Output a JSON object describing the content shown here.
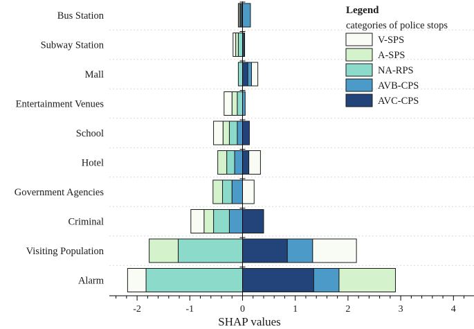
{
  "chart_data": {
    "type": "bar",
    "orientation": "horizontal",
    "stacking": "diverging",
    "xlabel": "SHAP values",
    "xlim": [
      -2.6,
      4.4
    ],
    "xticks": [
      -2,
      -1,
      0,
      1,
      2,
      3,
      4
    ],
    "xtick_labels": [
      "-2",
      "-1",
      "0",
      "1",
      "2",
      "3",
      "4"
    ],
    "categories": [
      "Bus Station",
      "Subway Station",
      "Mall",
      "Entertainment Venues",
      "School",
      "Hotel",
      "Government Agencies",
      "Criminal",
      "Visiting Population",
      "Alarm"
    ],
    "legend": {
      "title": "Legend",
      "subtitle": "categories of police stops",
      "position": "top-right",
      "entries": [
        "V-SPS",
        "A-SPS",
        "NA-RPS",
        "AVB-CPS",
        "AVC-CPS"
      ]
    },
    "series_colors": {
      "V-SPS": "#f8fcf5",
      "A-SPS": "#d4f3cc",
      "NA-RPS": "#8cdac9",
      "AVB-CPS": "#4b9ac8",
      "AVC-CPS": "#22447a"
    },
    "bars": [
      {
        "category": "Bus Station",
        "positive": [
          [
            "AVB-CPS",
            0.15
          ]
        ],
        "negative": [
          [
            "AVC-CPS",
            0.02
          ],
          [
            "NA-RPS",
            0.02
          ],
          [
            "A-SPS",
            0.02
          ],
          [
            "V-SPS",
            0.02
          ]
        ]
      },
      {
        "category": "Subway Station",
        "positive": [
          [
            "AVB-CPS",
            0.02
          ],
          [
            "AVC-CPS",
            0.02
          ]
        ],
        "negative": [
          [
            "NA-RPS",
            0.08
          ],
          [
            "A-SPS",
            0.05
          ],
          [
            "V-SPS",
            0.05
          ]
        ]
      },
      {
        "category": "Mall",
        "positive": [
          [
            "AVC-CPS",
            0.1
          ],
          [
            "AVB-CPS",
            0.07
          ],
          [
            "V-SPS",
            0.12
          ]
        ],
        "negative": [
          [
            "NA-RPS",
            0.08
          ]
        ]
      },
      {
        "category": "Entertainment Venues",
        "positive": [
          [
            "AVB-CPS",
            0.05
          ]
        ],
        "negative": [
          [
            "NA-RPS",
            0.1
          ],
          [
            "A-SPS",
            0.1
          ],
          [
            "V-SPS",
            0.15
          ]
        ]
      },
      {
        "category": "School",
        "positive": [
          [
            "AVC-CPS",
            0.13
          ]
        ],
        "negative": [
          [
            "AVB-CPS",
            0.1
          ],
          [
            "NA-RPS",
            0.15
          ],
          [
            "A-SPS",
            0.12
          ],
          [
            "V-SPS",
            0.18
          ]
        ]
      },
      {
        "category": "Hotel",
        "positive": [
          [
            "AVC-CPS",
            0.12
          ],
          [
            "V-SPS",
            0.22
          ]
        ],
        "negative": [
          [
            "AVB-CPS",
            0.15
          ],
          [
            "NA-RPS",
            0.15
          ],
          [
            "A-SPS",
            0.17
          ]
        ]
      },
      {
        "category": "Government Agencies",
        "positive": [
          [
            "V-SPS",
            0.22
          ]
        ],
        "negative": [
          [
            "AVB-CPS",
            0.2
          ],
          [
            "NA-RPS",
            0.18
          ],
          [
            "A-SPS",
            0.18
          ]
        ]
      },
      {
        "category": "Criminal",
        "positive": [
          [
            "AVC-CPS",
            0.4
          ]
        ],
        "negative": [
          [
            "AVB-CPS",
            0.25
          ],
          [
            "NA-RPS",
            0.3
          ],
          [
            "A-SPS",
            0.18
          ],
          [
            "V-SPS",
            0.25
          ]
        ]
      },
      {
        "category": "Visiting Population",
        "positive": [
          [
            "AVC-CPS",
            0.85
          ],
          [
            "AVB-CPS",
            0.48
          ],
          [
            "V-SPS",
            0.83
          ]
        ],
        "negative": [
          [
            "NA-RPS",
            1.22
          ],
          [
            "A-SPS",
            0.55
          ]
        ]
      },
      {
        "category": "Alarm",
        "positive": [
          [
            "AVC-CPS",
            1.35
          ],
          [
            "AVB-CPS",
            0.48
          ],
          [
            "A-SPS",
            1.07
          ]
        ],
        "negative": [
          [
            "NA-RPS",
            1.83
          ],
          [
            "V-SPS",
            0.35
          ]
        ]
      }
    ]
  }
}
